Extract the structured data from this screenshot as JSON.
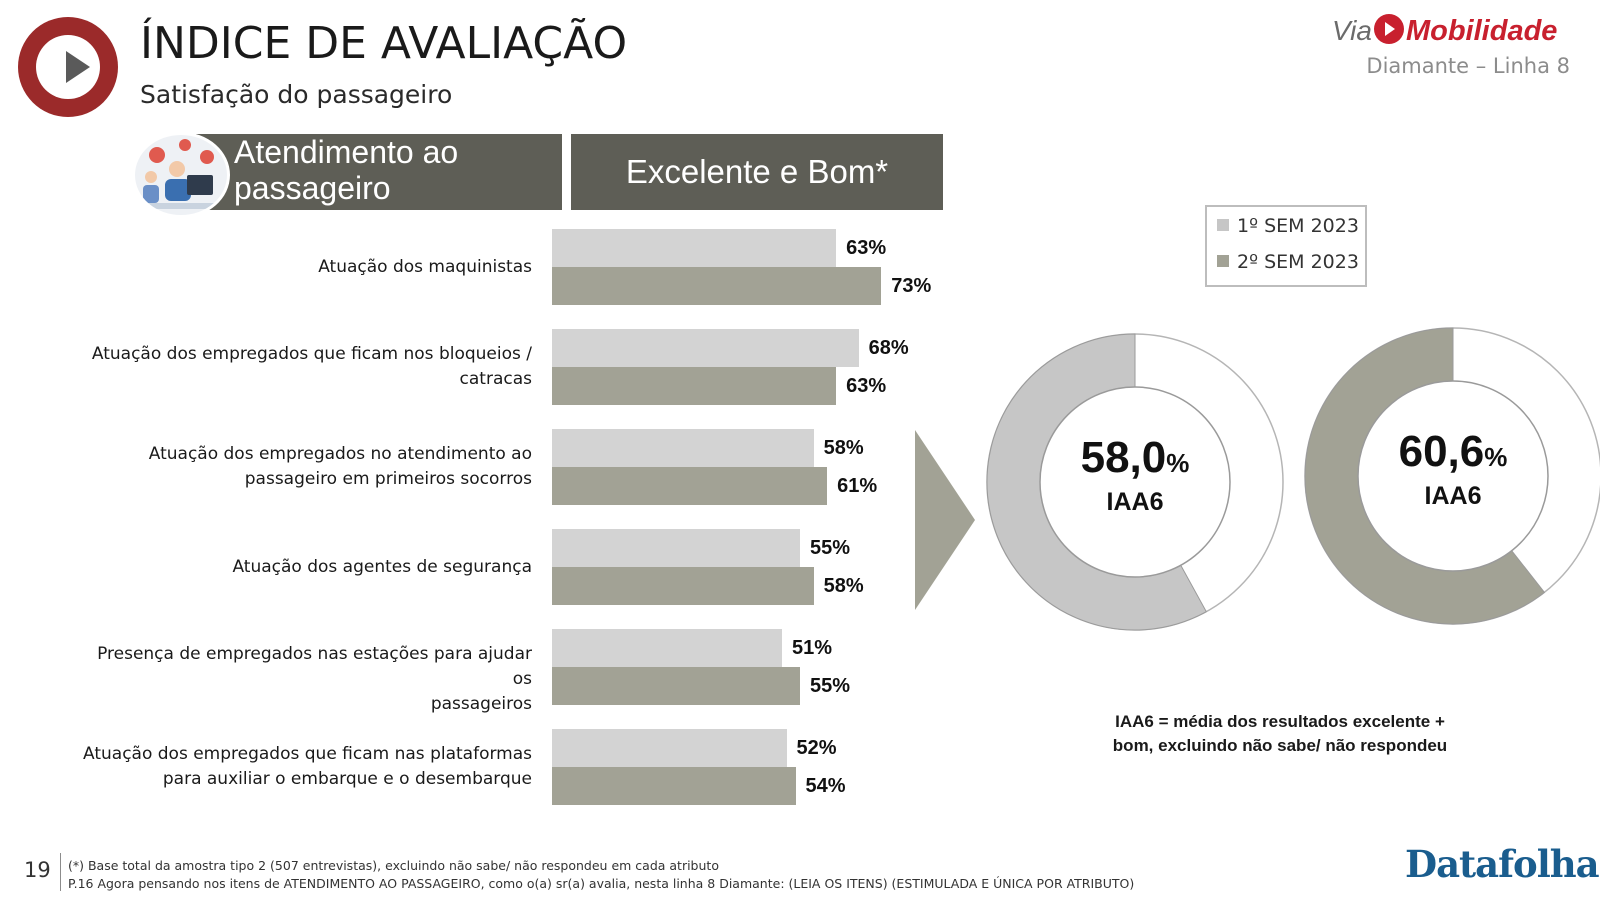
{
  "header": {
    "title": "ÍNDICE DE AVALIAÇÃO",
    "subtitle": "Satisfação do passageiro",
    "brand_prefix": "Via",
    "brand_name": "Mobilidade",
    "line_name": "Diamante – Linha 8",
    "brand_color": "#c8202e"
  },
  "section": {
    "topic_line1": "Atendimento ao",
    "topic_line2": "passageiro",
    "metric": "Excelente e Bom*",
    "icon": "customer-service-icon"
  },
  "legend": {
    "items": [
      "1º SEM 2023",
      "2º SEM 2023"
    ]
  },
  "chart_data": [
    {
      "type": "bar",
      "orientation": "horizontal",
      "categories": [
        "Atuação dos maquinistas",
        "Atuação dos empregados que ficam nos bloqueios / catracas",
        "Atuação dos empregados no atendimento ao passageiro em primeiros socorros",
        "Atuação dos agentes de segurança",
        "Presença de empregados nas estações para ajudar os passageiros",
        "Atuação dos empregados que ficam nas plataformas para auxiliar o embarque e o desembarque"
      ],
      "category_lines": [
        [
          "Atuação dos maquinistas"
        ],
        [
          "Atuação dos empregados que ficam nos bloqueios /",
          "catracas"
        ],
        [
          "Atuação dos empregados no atendimento ao",
          "passageiro em primeiros socorros"
        ],
        [
          "Atuação dos agentes de segurança"
        ],
        [
          "Presença de empregados nas estações para ajudar os",
          "passageiros"
        ],
        [
          "Atuação dos empregados que ficam nas plataformas",
          "para auxiliar o embarque e o desembarque"
        ]
      ],
      "series": [
        {
          "name": "1º SEM 2023",
          "color": "#d3d3d3",
          "values": [
            63,
            68,
            58,
            55,
            51,
            52
          ],
          "labels": [
            "63%",
            "68%",
            "58%",
            "55%",
            "51%",
            "52%"
          ]
        },
        {
          "name": "2º SEM 2023",
          "color": "#a2a295",
          "values": [
            73,
            63,
            61,
            58,
            55,
            54
          ],
          "labels": [
            "73%",
            "63%",
            "61%",
            "58%",
            "55%",
            "54%"
          ]
        }
      ],
      "xlim": [
        0,
        100
      ],
      "grid": false,
      "legend_position": "right"
    },
    {
      "type": "pie",
      "variant": "donut",
      "series": [
        {
          "name": "1º SEM 2023",
          "value": 58.0,
          "value_label": "58,0",
          "unit": "%",
          "sublabel": "IAA6",
          "fill_color": "#c6c6c6"
        },
        {
          "name": "2º SEM 2023",
          "value": 60.6,
          "value_label": "60,6",
          "unit": "%",
          "sublabel": "IAA6",
          "fill_color": "#a2a295"
        }
      ]
    }
  ],
  "note": "IAA6 = média dos resultados excelente + bom, excluindo não sabe/ não respondeu",
  "footer": {
    "page_number": "19",
    "footnote1": "(*) Base total da amostra tipo 2 (507 entrevistas), excluindo não sabe/ não respondeu em cada atributo",
    "footnote2": "P.16 Agora pensando nos itens de ATENDIMENTO AO PASSAGEIRO, como o(a) sr(a) avalia, nesta linha 8 Diamante: (LEIA OS ITENS) (ESTIMULADA E ÚNICA POR ATRIBUTO)",
    "logo": "Datafolha"
  }
}
